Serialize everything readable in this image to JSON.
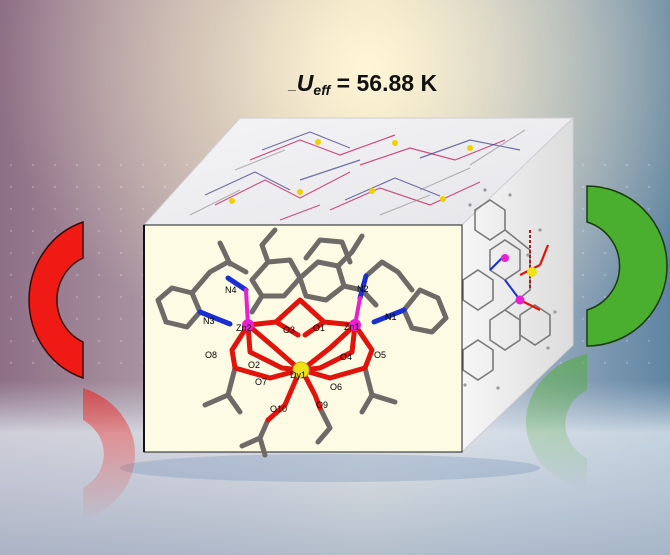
{
  "title": {
    "prefix": "_",
    "symbol": "U",
    "subscript": "eff",
    "value_text": " = 56.88 K"
  },
  "atom_labels": [
    "N4",
    "N3",
    "Zn2",
    "O8",
    "O2",
    "O7",
    "O3",
    "O1",
    "N2",
    "Zn1",
    "N1",
    "O4",
    "O5",
    "Dy1",
    "O6",
    "O10",
    "O9"
  ],
  "colors": {
    "red_magnet": "#f01a14",
    "green_magnet": "#4aae2e",
    "cube_front_face": "#fdfbe3",
    "metal_zn": "#e91fd0",
    "metal_dy": "#f0e21a",
    "oxygen": "#e0140c",
    "nitrogen": "#1a2fd0",
    "carbon": "#6e6a68"
  }
}
